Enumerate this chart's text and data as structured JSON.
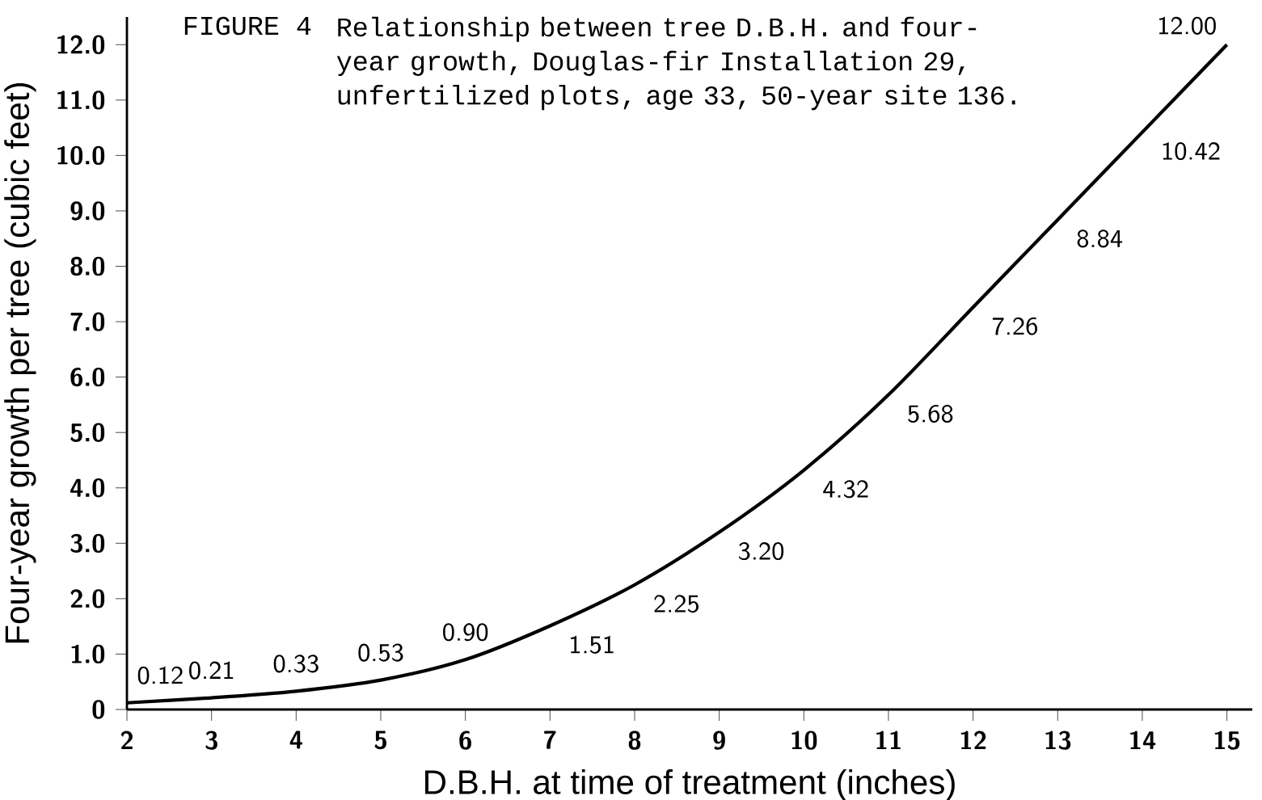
{
  "chart_data": {
    "type": "line",
    "title": "FIGURE 4",
    "subtitle": "Relationship between tree D.B.H. and four-year growth, Douglas-fir Installation 29, unfertilized plots, age 33, 50-year site 136.",
    "xlabel": "D.B.H. at time of treatment (inches)",
    "ylabel": "Four-year growth per tree (cubic feet)",
    "x": [
      2,
      3,
      4,
      5,
      6,
      7,
      8,
      9,
      10,
      11,
      12,
      13,
      14,
      15
    ],
    "values": [
      0.12,
      0.21,
      0.33,
      0.53,
      0.9,
      1.51,
      2.25,
      3.2,
      4.32,
      5.68,
      7.26,
      8.84,
      10.42,
      12.0
    ],
    "value_labels": [
      "0.12",
      "0.21",
      "0.33",
      "0.53",
      "0.90",
      "1.51",
      "2.25",
      "3.20",
      "4.32",
      "5.68",
      "7.26",
      "8.84",
      "10.42",
      "12.00"
    ],
    "color": "#000000",
    "xlim": [
      2,
      15.3
    ],
    "ylim": [
      0,
      12.5
    ],
    "xticks": [
      2,
      3,
      4,
      5,
      6,
      7,
      8,
      9,
      10,
      11,
      12,
      13,
      14,
      15
    ],
    "yticks": [
      0,
      {
        "value": 1,
        "label": "1.0"
      },
      {
        "value": 2,
        "label": "2.0"
      },
      {
        "value": 3,
        "label": "3.0"
      },
      {
        "value": 4,
        "label": "4.0"
      },
      {
        "value": 5,
        "label": "5.0"
      },
      {
        "value": 6,
        "label": "6.0"
      },
      {
        "value": 7,
        "label": "7.0"
      },
      {
        "value": 8,
        "label": "8.0"
      },
      {
        "value": 9,
        "label": "9.0"
      },
      {
        "value": 10,
        "label": "10.0"
      },
      {
        "value": 11,
        "label": "11.0"
      },
      {
        "value": 12,
        "label": "12.0"
      }
    ]
  }
}
